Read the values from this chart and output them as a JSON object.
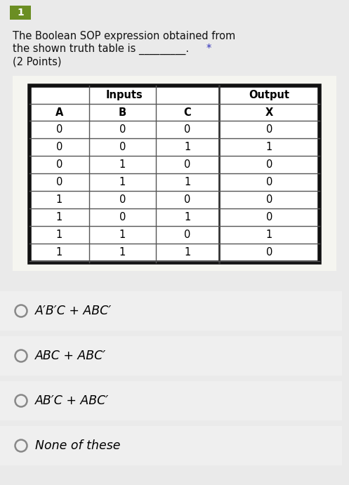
{
  "background_color": "#eaeaea",
  "number_box_color": "#6b8e23",
  "number_text": "1",
  "question_line1": "The Boolean SOP expression obtained from",
  "question_line2": "the shown truth table is _________.",
  "question_line3": "(2 Points)",
  "asterisk": "*",
  "table_bg": "#f5f5f0",
  "table": {
    "header_row2": [
      "A",
      "B",
      "C",
      "X"
    ],
    "data_rows": [
      [
        "0",
        "0",
        "0",
        "0"
      ],
      [
        "0",
        "0",
        "1",
        "1"
      ],
      [
        "0",
        "1",
        "0",
        "0"
      ],
      [
        "0",
        "1",
        "1",
        "0"
      ],
      [
        "1",
        "0",
        "0",
        "0"
      ],
      [
        "1",
        "0",
        "1",
        "0"
      ],
      [
        "1",
        "1",
        "0",
        "1"
      ],
      [
        "1",
        "1",
        "1",
        "0"
      ]
    ],
    "border_color": "#111111",
    "text_color_data": "#000000",
    "text_color_header": "#000000"
  },
  "options": [
    {
      "label": "A′B′C + ABC′"
    },
    {
      "label": "ABC + ABC′"
    },
    {
      "label": "AB′C + ABC′"
    },
    {
      "label": "None of these"
    }
  ],
  "option_bg": "#efefef",
  "option_text_color": "#000000",
  "option_font_size": 12.5
}
